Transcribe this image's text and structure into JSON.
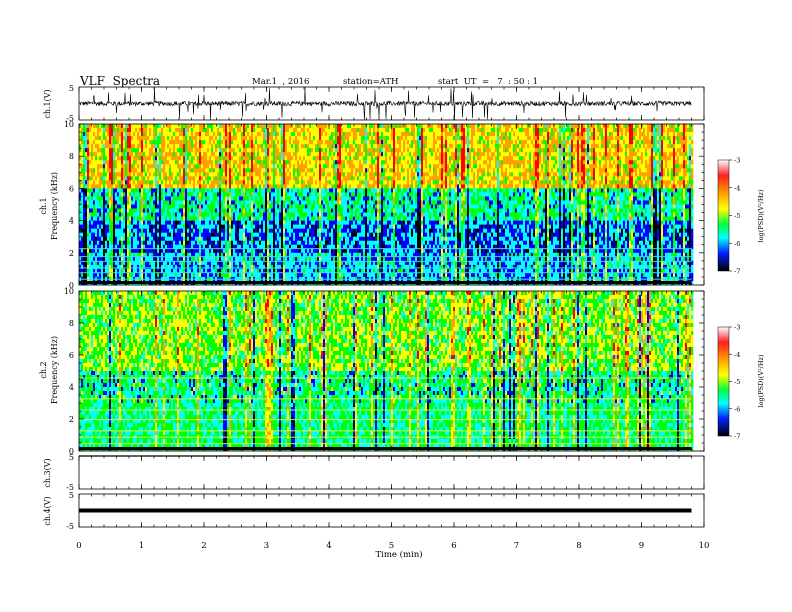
{
  "header": {
    "title": "VLF  Spectra",
    "date": "Mar.1  , 2016",
    "station": "station=ATH",
    "start": "start  UT  =   7  : 50 : 1"
  },
  "chart_data": [
    {
      "type": "line",
      "panel": "ch1-waveform",
      "ylabel": "ch.1(V)",
      "yticks": [
        "5",
        "-5"
      ],
      "ylim": [
        -5,
        5
      ],
      "baseline": 0,
      "noise_amplitude": 0.7,
      "spikes": "frequent impulsive spikes of up to ±5 V"
    },
    {
      "type": "heatmap",
      "panel": "ch1-spectrogram",
      "ylabel_line1": "ch.1",
      "ylabel_line2": "Frequency  (kHz)",
      "ylim": [
        0,
        10
      ],
      "yticks": [
        "0",
        "2",
        "4",
        "6",
        "8",
        "10"
      ],
      "colorbar": {
        "label": "log(PSD)(V²/Hz)",
        "ticks": [
          "-3",
          "-4",
          "-5",
          "-6",
          "-7"
        ],
        "range": [
          -7,
          -3
        ]
      },
      "description": "broadband noise; high PSD (red/yellow) above 6 kHz, low PSD (blue) 2-6 kHz, horizontal tone lines below 2 kHz; vertical sferic streaks throughout"
    },
    {
      "type": "heatmap",
      "panel": "ch2-spectrogram",
      "ylabel_line1": "ch.2",
      "ylabel_line2": "Frequency  (kHz)",
      "ylim": [
        0,
        10
      ],
      "yticks": [
        "0",
        "2",
        "4",
        "6",
        "8",
        "10"
      ],
      "colorbar": {
        "label": "log(PSD)(V²/Hz)",
        "ticks": [
          "-3",
          "-4",
          "-5",
          "-6",
          "-7"
        ],
        "range": [
          -7,
          -3
        ]
      },
      "description": "mostly green/yellow with vertical red and dark-blue streaks; horizontal tone lines below 5 kHz"
    },
    {
      "type": "line",
      "panel": "ch3-waveform",
      "ylabel": "ch.3(V)",
      "yticks": [
        "5",
        "-5"
      ],
      "ylim": [
        -5,
        5
      ],
      "baseline": 5
    },
    {
      "type": "line",
      "panel": "ch4-waveform",
      "ylabel": "ch.4(V)",
      "yticks": [
        "5",
        "-5"
      ],
      "ylim": [
        -5,
        5
      ],
      "baseline": 0
    }
  ],
  "xaxis": {
    "label": "Time  (min)",
    "ticks": [
      "0",
      "1",
      "2",
      "3",
      "4",
      "5",
      "6",
      "7",
      "8",
      "9",
      "10"
    ],
    "range": [
      0,
      10
    ],
    "data_end": 9.8
  },
  "colors": {
    "scale": [
      "#ffffff",
      "#ff0000",
      "#ffa000",
      "#ffff00",
      "#00ff00",
      "#00ffff",
      "#0000ff",
      "#000000"
    ]
  }
}
